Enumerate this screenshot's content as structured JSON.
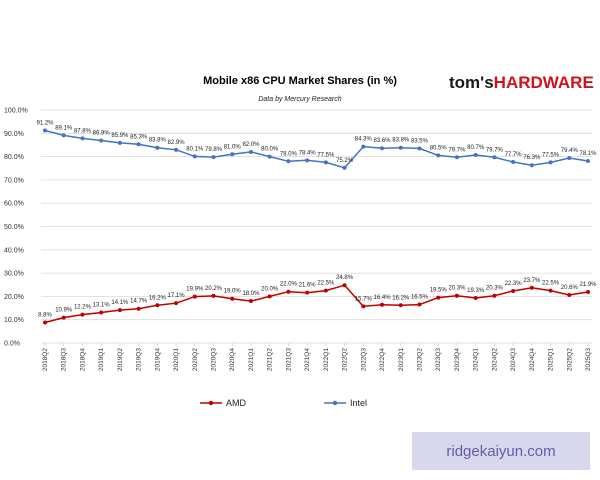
{
  "chart_data": {
    "type": "line",
    "title": "Mobile x86 CPU Market Shares (in %)",
    "subtitle": "Data by Mercury Research",
    "ylim": [
      0,
      100
    ],
    "yticks": [
      "0.0%",
      "10.0%",
      "20.0%",
      "30.0%",
      "40.0%",
      "50.0%",
      "60.0%",
      "70.0%",
      "80.0%",
      "90.0%",
      "100.0%"
    ],
    "grid": true,
    "legend_position": "bottom",
    "categories": [
      "2018Q2",
      "2018Q3",
      "2018Q4",
      "2019Q1",
      "2019Q2",
      "2019Q3",
      "2019Q4",
      "2020Q1",
      "2020Q2",
      "2020Q3",
      "2020Q4",
      "2021Q1",
      "2021Q2",
      "2021Q3",
      "2021Q4",
      "2022Q1",
      "2022Q2",
      "2022Q3",
      "2022Q4",
      "2023Q1",
      "2023Q2",
      "2023Q3",
      "2023Q4",
      "2024Q1",
      "2024Q2",
      "2024Q3",
      "2024Q4",
      "2025Q1",
      "2025Q2",
      "2025Q3"
    ],
    "series": [
      {
        "name": "Intel",
        "color": "#4472c4",
        "values": [
          91.2,
          89.1,
          87.8,
          86.9,
          85.9,
          85.3,
          83.8,
          82.9,
          80.1,
          79.8,
          81.0,
          82.0,
          80.0,
          78.0,
          78.4,
          77.5,
          75.2,
          84.3,
          83.6,
          83.8,
          83.5,
          80.5,
          79.7,
          80.7,
          79.7,
          77.7,
          76.3,
          77.5,
          79.4,
          78.1
        ],
        "labels": [
          "91.2%",
          "89.1%",
          "87.8%",
          "86.9%",
          "85.9%",
          "85.3%",
          "83.8%",
          "82.9%",
          "80.1%",
          "79.8%",
          "81.0%",
          "82.0%",
          "80.0%",
          "78.0%",
          "78.4%",
          "77.5%",
          "75.2%",
          "84.3%",
          "83.6%",
          "83.8%",
          "83.5%",
          "80.5%",
          "79.7%",
          "80.7%",
          "79.7%",
          "77.7%",
          "76.3%",
          "77.5%",
          "79.4%",
          "78.1%"
        ]
      },
      {
        "name": "AMD",
        "color": "#c00000",
        "values": [
          8.8,
          10.9,
          12.2,
          13.1,
          14.1,
          14.7,
          16.2,
          17.1,
          19.9,
          20.2,
          19.0,
          18.0,
          20.0,
          22.0,
          21.6,
          22.5,
          24.8,
          15.7,
          16.4,
          16.2,
          16.5,
          19.5,
          20.3,
          19.3,
          20.3,
          22.3,
          23.7,
          22.5,
          20.6,
          21.9
        ],
        "labels": [
          "8.8%",
          "10.9%",
          "12.2%",
          "13.1%",
          "14.1%",
          "14.7%",
          "16.2%",
          "17.1%",
          "19.9%",
          "20.2%",
          "19.0%",
          "18.0%",
          "20.0%",
          "22.0%",
          "21.6%",
          "22.5%",
          "24.8%",
          "15.7%",
          "16.4%",
          "16.2%",
          "16.5%",
          "19.5%",
          "20.3%",
          "19.3%",
          "20.3%",
          "22.3%",
          "23.7%",
          "22.5%",
          "20.6%",
          "21.9%"
        ]
      }
    ],
    "legend": [
      "AMD",
      "Intel"
    ]
  },
  "branding": {
    "logo_part1": "tom's",
    "logo_part2": "HARDWARE"
  },
  "watermark": {
    "text": "ridgekaiyun.com"
  }
}
